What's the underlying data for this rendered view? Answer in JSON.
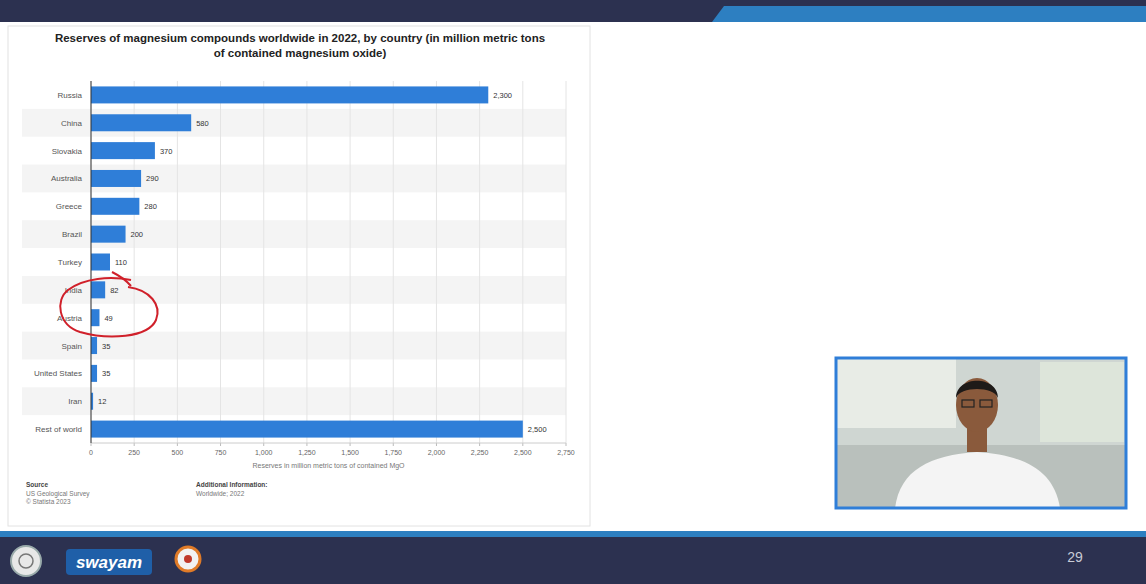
{
  "chart_data": {
    "type": "bar",
    "orientation": "horizontal",
    "title": "Reserves of magnesium compounds worldwide in 2022, by country (in million metric tons of contained magnesium oxide)",
    "x_label": "Reserves in million metric tons of contained MgO",
    "categories": [
      "Russia",
      "China",
      "Slovakia",
      "Australia",
      "Greece",
      "Brazil",
      "Turkey",
      "India",
      "Austria",
      "Spain",
      "United States",
      "Iran",
      "Rest of world"
    ],
    "values": [
      2300,
      580,
      370,
      290,
      280,
      200,
      110,
      82,
      49,
      35,
      35,
      12,
      2500
    ],
    "value_labels": [
      "2,300",
      "580",
      "370",
      "290",
      "280",
      "200",
      "110",
      "82",
      "49",
      "35",
      "35",
      "12",
      "2,500"
    ],
    "data_labels": true,
    "color": "#2f7ed8",
    "xlim": [
      0,
      2750
    ],
    "xticks": [
      0,
      250,
      500,
      750,
      {
        "value": 1000,
        "label": "1,000"
      },
      {
        "value": 1250,
        "label": "1,250"
      },
      {
        "value": 1500,
        "label": "1,500"
      },
      {
        "value": 1750,
        "label": "1,750"
      },
      {
        "value": 2000,
        "label": "2,000"
      },
      {
        "value": 2250,
        "label": "2,250"
      },
      {
        "value": 2500,
        "label": "2,500"
      },
      {
        "value": 2750,
        "label": "2,750"
      }
    ],
    "grid": true,
    "source": {
      "heading": "Source",
      "lines": [
        "US Geological Survey",
        "© Statista 2023"
      ]
    },
    "additional_information": {
      "heading": "Additional Information:",
      "lines": [
        "Worldwide; 2022"
      ]
    }
  },
  "slide": {
    "logo_text": "swayam",
    "page_number": "29"
  }
}
